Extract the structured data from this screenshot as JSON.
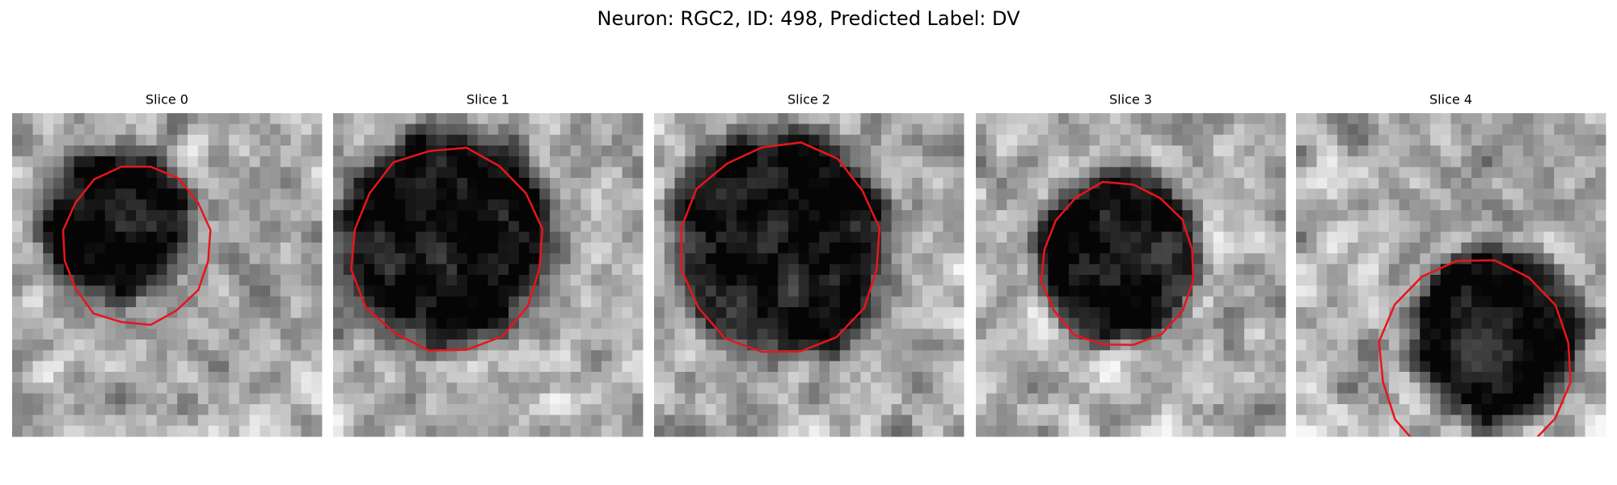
{
  "header": {
    "title": "Neuron: RGC2, ID: 498, Predicted Label: DV"
  },
  "panels": [
    {
      "title": "Slice 0"
    },
    {
      "title": "Slice 1"
    },
    {
      "title": "Slice 2"
    },
    {
      "title": "Slice 3"
    },
    {
      "title": "Slice 4"
    }
  ]
}
